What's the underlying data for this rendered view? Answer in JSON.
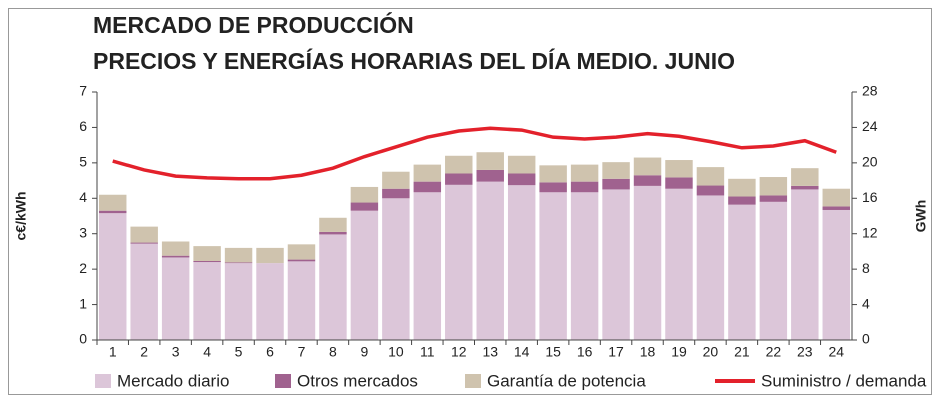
{
  "chart_data": {
    "type": "bar_line",
    "title": [
      "MERCADO DE PRODUCCIÓN",
      "PRECIOS Y ENERGÍAS HORARIAS DEL DÍA MEDIO. JUNIO"
    ],
    "y_label": "c€/kWh",
    "y2_label": "GWh",
    "categories": [
      "1",
      "2",
      "3",
      "4",
      "5",
      "6",
      "7",
      "8",
      "9",
      "10",
      "11",
      "12",
      "13",
      "14",
      "15",
      "16",
      "17",
      "18",
      "19",
      "20",
      "21",
      "22",
      "23",
      "24"
    ],
    "ylim": [
      0,
      7
    ],
    "yticks": [
      0,
      1,
      2,
      3,
      4,
      5,
      6,
      7
    ],
    "y2lim": [
      0,
      28
    ],
    "y2ticks": [
      0,
      4,
      8,
      12,
      16,
      20,
      24,
      28
    ],
    "series": [
      {
        "name": "Mercado diario",
        "color": "#dcc6d9",
        "stacked": true,
        "values": [
          3.58,
          2.72,
          2.33,
          2.2,
          2.17,
          2.17,
          2.22,
          2.98,
          3.65,
          4.0,
          4.17,
          4.38,
          4.47,
          4.37,
          4.17,
          4.17,
          4.25,
          4.35,
          4.27,
          4.08,
          3.82,
          3.9,
          4.25,
          3.67
        ]
      },
      {
        "name": "Otros mercados",
        "color": "#a0628f",
        "stacked": true,
        "values": [
          0.07,
          0.03,
          0.05,
          0.03,
          0.02,
          0,
          0.05,
          0.07,
          0.23,
          0.27,
          0.3,
          0.32,
          0.33,
          0.33,
          0.28,
          0.3,
          0.3,
          0.3,
          0.32,
          0.28,
          0.23,
          0.18,
          0.1,
          0.1
        ]
      },
      {
        "name": "Garantía de potencia",
        "color": "#cfc3ae",
        "stacked": true,
        "values": [
          0.45,
          0.45,
          0.4,
          0.42,
          0.41,
          0.43,
          0.43,
          0.4,
          0.44,
          0.48,
          0.48,
          0.5,
          0.5,
          0.5,
          0.48,
          0.48,
          0.47,
          0.5,
          0.49,
          0.52,
          0.5,
          0.52,
          0.5,
          0.5
        ]
      },
      {
        "name": "Suministro / demanda",
        "color": "#e3212b",
        "type": "line",
        "axis": "y2",
        "values": [
          20.2,
          19.2,
          18.5,
          18.3,
          18.2,
          18.2,
          18.6,
          19.4,
          20.7,
          21.8,
          22.9,
          23.6,
          23.9,
          23.7,
          22.9,
          22.7,
          22.9,
          23.3,
          23.0,
          22.4,
          21.7,
          21.9,
          22.5,
          21.2
        ]
      }
    ]
  }
}
